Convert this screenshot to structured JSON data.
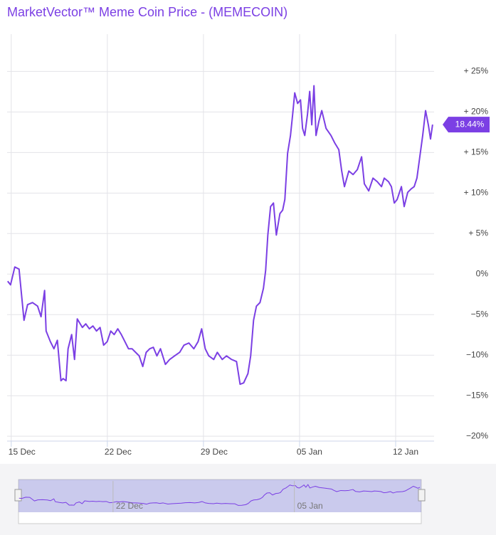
{
  "chart_data": {
    "type": "line",
    "title": "MarketVector™ Meme Coin Price - (MEMECOIN)",
    "color": "#7b3fe4",
    "grid": true,
    "xlim": [
      -0.3,
      30.8
    ],
    "xticks": [
      {
        "value": 0,
        "label": "15 Dec"
      },
      {
        "value": 7,
        "label": "22 Dec"
      },
      {
        "value": 14,
        "label": "29 Dec"
      },
      {
        "value": 21,
        "label": "05 Jan"
      },
      {
        "value": 28,
        "label": "12 Jan"
      }
    ],
    "ylim": [
      -20.6,
      29.6
    ],
    "yticks": [
      {
        "value": -20,
        "label": "−20%"
      },
      {
        "value": -15,
        "label": "−15%"
      },
      {
        "value": -10,
        "label": "−10%"
      },
      {
        "value": -5,
        "label": "−5%"
      },
      {
        "value": 0,
        "label": "0%"
      },
      {
        "value": 5,
        "label": "+ 5%"
      },
      {
        "value": 10,
        "label": "+ 10%"
      },
      {
        "value": 15,
        "label": "+ 15%"
      },
      {
        "value": 20,
        "label": "+ 20%"
      },
      {
        "value": 25,
        "label": "+ 25%"
      }
    ],
    "last_value_label": "18.44%",
    "x": [
      -0.26,
      -0.05,
      0.26,
      0.57,
      0.78,
      0.93,
      1.19,
      1.55,
      1.92,
      2.17,
      2.43,
      2.54,
      2.85,
      3.11,
      3.36,
      3.62,
      3.78,
      3.99,
      4.14,
      4.4,
      4.61,
      4.81,
      5.18,
      5.43,
      5.69,
      5.95,
      6.21,
      6.47,
      6.73,
      6.99,
      7.25,
      7.5,
      7.76,
      8.02,
      8.28,
      8.54,
      8.8,
      9.06,
      9.32,
      9.58,
      9.83,
      10.09,
      10.35,
      10.61,
      10.87,
      11.23,
      11.54,
      11.9,
      12.27,
      12.58,
      12.94,
      13.3,
      13.61,
      13.87,
      14.13,
      14.39,
      14.75,
      15.01,
      15.37,
      15.68,
      16.05,
      16.41,
      16.67,
      16.93,
      17.24,
      17.44,
      17.65,
      17.86,
      18.12,
      18.37,
      18.53,
      18.69,
      18.89,
      19.1,
      19.31,
      19.57,
      19.77,
      19.93,
      20.13,
      20.34,
      20.5,
      20.65,
      20.86,
      21.07,
      21.22,
      21.38,
      21.58,
      21.74,
      21.89,
      22.05,
      22.2,
      22.41,
      22.62,
      22.93,
      23.29,
      23.55,
      23.86,
      24.07,
      24.27,
      24.59,
      24.9,
      25.21,
      25.52,
      25.72,
      26.04,
      26.35,
      26.66,
      26.97,
      27.17,
      27.48,
      27.69,
      27.9,
      28.11,
      28.42,
      28.62,
      28.88,
      29.14,
      29.35,
      29.55,
      29.76,
      29.97,
      30.18,
      30.38,
      30.54,
      30.69
    ],
    "values": [
      -0.88,
      -1.32,
      0.88,
      0.61,
      -3.07,
      -5.7,
      -3.77,
      -3.51,
      -3.95,
      -5.26,
      -2.02,
      -7.02,
      -8.33,
      -9.21,
      -8.16,
      -13.15,
      -12.89,
      -13.15,
      -9.21,
      -7.46,
      -10.53,
      -5.53,
      -6.58,
      -6.14,
      -6.75,
      -6.4,
      -7.02,
      -6.58,
      -8.77,
      -8.33,
      -7.02,
      -7.46,
      -6.75,
      -7.46,
      -8.33,
      -9.21,
      -9.21,
      -9.65,
      -10.09,
      -11.4,
      -9.65,
      -9.21,
      -9.03,
      -10.09,
      -9.21,
      -11.14,
      -10.53,
      -10.09,
      -9.65,
      -8.77,
      -8.5,
      -9.21,
      -8.33,
      -6.75,
      -9.21,
      -10.09,
      -10.53,
      -9.65,
      -10.53,
      -10.09,
      -10.53,
      -10.79,
      -13.59,
      -13.42,
      -12.28,
      -10.09,
      -5.7,
      -3.95,
      -3.51,
      -1.75,
      0.44,
      4.82,
      8.33,
      8.77,
      4.82,
      7.46,
      7.89,
      9.21,
      14.91,
      17.1,
      19.73,
      22.36,
      21.05,
      21.49,
      17.98,
      17.1,
      19.73,
      22.54,
      18.42,
      23.24,
      17.1,
      18.86,
      20.17,
      17.98,
      17.1,
      16.22,
      15.35,
      12.72,
      10.79,
      12.72,
      12.28,
      12.89,
      14.47,
      11.14,
      10.26,
      11.84,
      11.4,
      10.79,
      11.84,
      11.4,
      10.79,
      8.77,
      9.21,
      10.79,
      8.33,
      10.09,
      10.53,
      10.79,
      11.84,
      14.47,
      17.1,
      20.17,
      18.42,
      16.67,
      18.44
    ]
  }
}
